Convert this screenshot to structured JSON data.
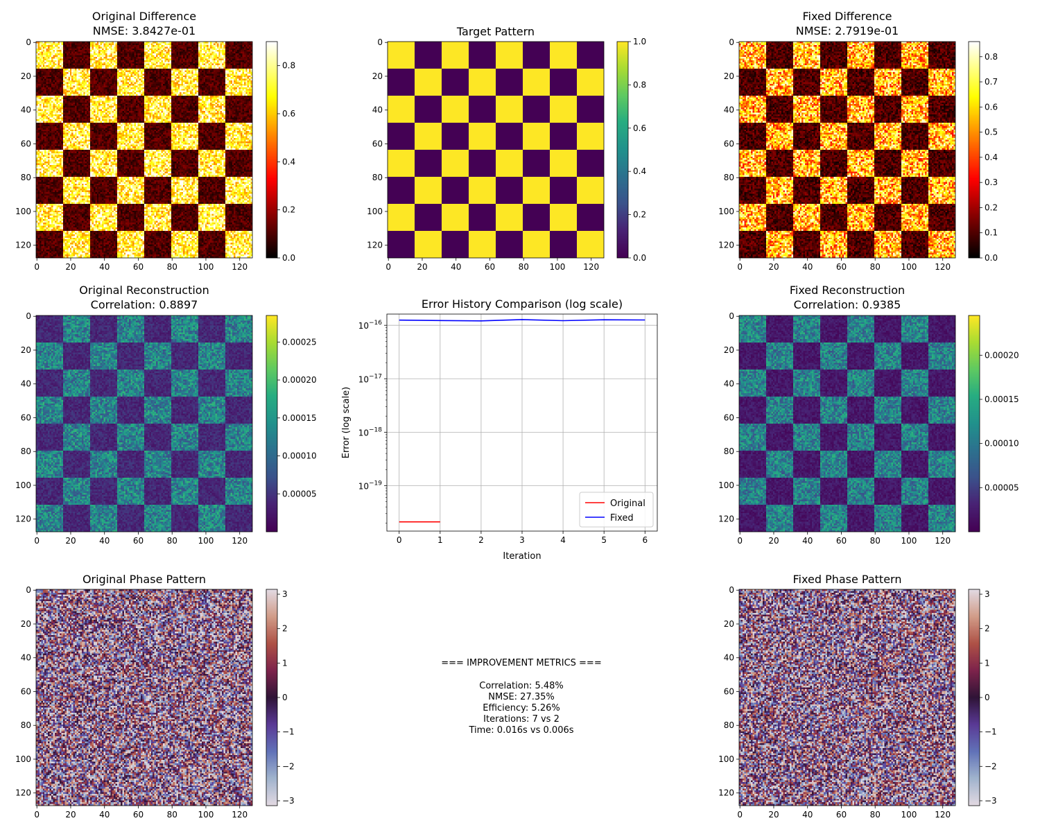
{
  "metrics": {
    "header": "=== IMPROVEMENT METRICS ===",
    "lines": [
      "Correlation: 5.48%",
      "NMSE: 27.35%",
      "Efficiency: 5.26%",
      "Iterations: 7 vs 2",
      "Time: 0.016s vs 0.006s"
    ]
  },
  "chart_data": [
    {
      "type": "heatmap",
      "title": [
        "Original Difference",
        "NMSE: 3.8427e-01"
      ],
      "colormap": "hot",
      "xticks": [
        0,
        20,
        40,
        60,
        80,
        100,
        120
      ],
      "yticks": [
        0,
        20,
        40,
        60,
        80,
        100,
        120
      ],
      "extent": [
        0,
        128
      ],
      "checker_block": 16,
      "first_block_high": true,
      "high_level": 0.72,
      "low_level": 0.04,
      "noise": 0.22,
      "clim": [
        0,
        0.9
      ],
      "colorbar_ticks": [
        "0.0",
        "0.2",
        "0.4",
        "0.6",
        "0.8"
      ],
      "colorbar_values": [
        0,
        0.2,
        0.4,
        0.6,
        0.8
      ]
    },
    {
      "type": "heatmap",
      "title": [
        "Target Pattern"
      ],
      "colormap": "viridis",
      "xticks": [
        0,
        20,
        40,
        60,
        80,
        100,
        120
      ],
      "yticks": [
        0,
        20,
        40,
        60,
        80,
        100,
        120
      ],
      "extent": [
        0,
        128
      ],
      "checker_block": 16,
      "first_block_high": true,
      "high_level": 1.0,
      "low_level": 0.0,
      "noise": 0.0,
      "clim": [
        0,
        1.0
      ],
      "colorbar_ticks": [
        "0.0",
        "0.2",
        "0.4",
        "0.6",
        "0.8",
        "1.0"
      ],
      "colorbar_values": [
        0,
        0.2,
        0.4,
        0.6,
        0.8,
        1.0
      ]
    },
    {
      "type": "heatmap",
      "title": [
        "Fixed Difference",
        "NMSE: 2.7919e-01"
      ],
      "colormap": "hot",
      "xticks": [
        0,
        20,
        40,
        60,
        80,
        100,
        120
      ],
      "yticks": [
        0,
        20,
        40,
        60,
        80,
        100,
        120
      ],
      "extent": [
        0,
        128
      ],
      "checker_block": 16,
      "first_block_high": true,
      "high_level": 0.58,
      "low_level": 0.02,
      "noise": 0.26,
      "clim": [
        0,
        0.86
      ],
      "colorbar_ticks": [
        "0.0",
        "0.1",
        "0.2",
        "0.3",
        "0.4",
        "0.5",
        "0.6",
        "0.7",
        "0.8"
      ],
      "colorbar_values": [
        0,
        0.1,
        0.2,
        0.3,
        0.4,
        0.5,
        0.6,
        0.7,
        0.8
      ]
    },
    {
      "type": "heatmap",
      "title": [
        "Original Reconstruction",
        "Correlation: 0.8897"
      ],
      "colormap": "viridis",
      "xticks": [
        0,
        20,
        40,
        60,
        80,
        100,
        120
      ],
      "yticks": [
        0,
        20,
        40,
        60,
        80,
        100,
        120
      ],
      "extent": [
        0,
        128
      ],
      "checker_block": 16,
      "first_block_high": false,
      "high_level": 0.00013,
      "low_level": 2e-05,
      "noise": 6e-05,
      "clim": [
        0,
        0.000285
      ],
      "colorbar_ticks": [
        "0.00005",
        "0.00010",
        "0.00015",
        "0.00020",
        "0.00025"
      ],
      "colorbar_values": [
        5e-05,
        0.0001,
        0.00015,
        0.0002,
        0.00025
      ]
    },
    {
      "type": "line",
      "title": "Error History Comparison (log scale)",
      "xlabel": "Iteration",
      "ylabel": "Error (log scale)",
      "yscale": "log",
      "xlim": [
        -0.3,
        6.3
      ],
      "ylim_exp": [
        -19.85,
        -15.79
      ],
      "xticks": [
        0,
        1,
        2,
        3,
        4,
        5,
        6
      ],
      "yticks_exp": [
        -16,
        -17,
        -18,
        -19
      ],
      "ytick_base": "10",
      "grid": true,
      "legend_position": "lower-right",
      "series": [
        {
          "name": "Original",
          "color": "#ff0000",
          "x": [
            0,
            1
          ],
          "y": [
            2.1e-20,
            2.1e-20
          ]
        },
        {
          "name": "Fixed",
          "color": "#0000ff",
          "x": [
            0,
            1,
            2,
            3,
            4,
            5,
            6
          ],
          "y": [
            1.25e-16,
            1.23e-16,
            1.21e-16,
            1.28e-16,
            1.22e-16,
            1.27e-16,
            1.26e-16
          ]
        }
      ]
    },
    {
      "type": "heatmap",
      "title": [
        "Fixed Reconstruction",
        "Correlation: 0.9385"
      ],
      "colormap": "viridis",
      "xticks": [
        0,
        20,
        40,
        60,
        80,
        100,
        120
      ],
      "yticks": [
        0,
        20,
        40,
        60,
        80,
        100,
        120
      ],
      "extent": [
        0,
        128
      ],
      "checker_block": 16,
      "first_block_high": true,
      "high_level": 0.00011,
      "low_level": 5e-06,
      "noise": 5e-05,
      "clim": [
        0,
        0.000245
      ],
      "colorbar_ticks": [
        "0.00005",
        "0.00010",
        "0.00015",
        "0.00020"
      ],
      "colorbar_values": [
        5e-05,
        0.0001,
        0.00015,
        0.0002
      ]
    },
    {
      "type": "heatmap",
      "title": [
        "Original Phase Pattern"
      ],
      "colormap": "twilight",
      "xticks": [
        0,
        20,
        40,
        60,
        80,
        100,
        120
      ],
      "yticks": [
        0,
        20,
        40,
        60,
        80,
        100,
        120
      ],
      "extent": [
        0,
        128
      ],
      "random_phase": true,
      "clim": [
        -3.1416,
        3.1416
      ],
      "colorbar_ticks": [
        "−3",
        "−2",
        "−1",
        "0",
        "1",
        "2",
        "3"
      ],
      "colorbar_values": [
        -3,
        -2,
        -1,
        0,
        1,
        2,
        3
      ]
    },
    {
      "type": "heatmap",
      "title": [
        "Fixed Phase Pattern"
      ],
      "colormap": "twilight",
      "xticks": [
        0,
        20,
        40,
        60,
        80,
        100,
        120
      ],
      "yticks": [
        0,
        20,
        40,
        60,
        80,
        100,
        120
      ],
      "extent": [
        0,
        128
      ],
      "random_phase": true,
      "clim": [
        -3.1416,
        3.1416
      ],
      "colorbar_ticks": [
        "−3",
        "−2",
        "−1",
        "0",
        "1",
        "2",
        "3"
      ],
      "colorbar_values": [
        -3,
        -2,
        -1,
        0,
        1,
        2,
        3
      ]
    }
  ]
}
